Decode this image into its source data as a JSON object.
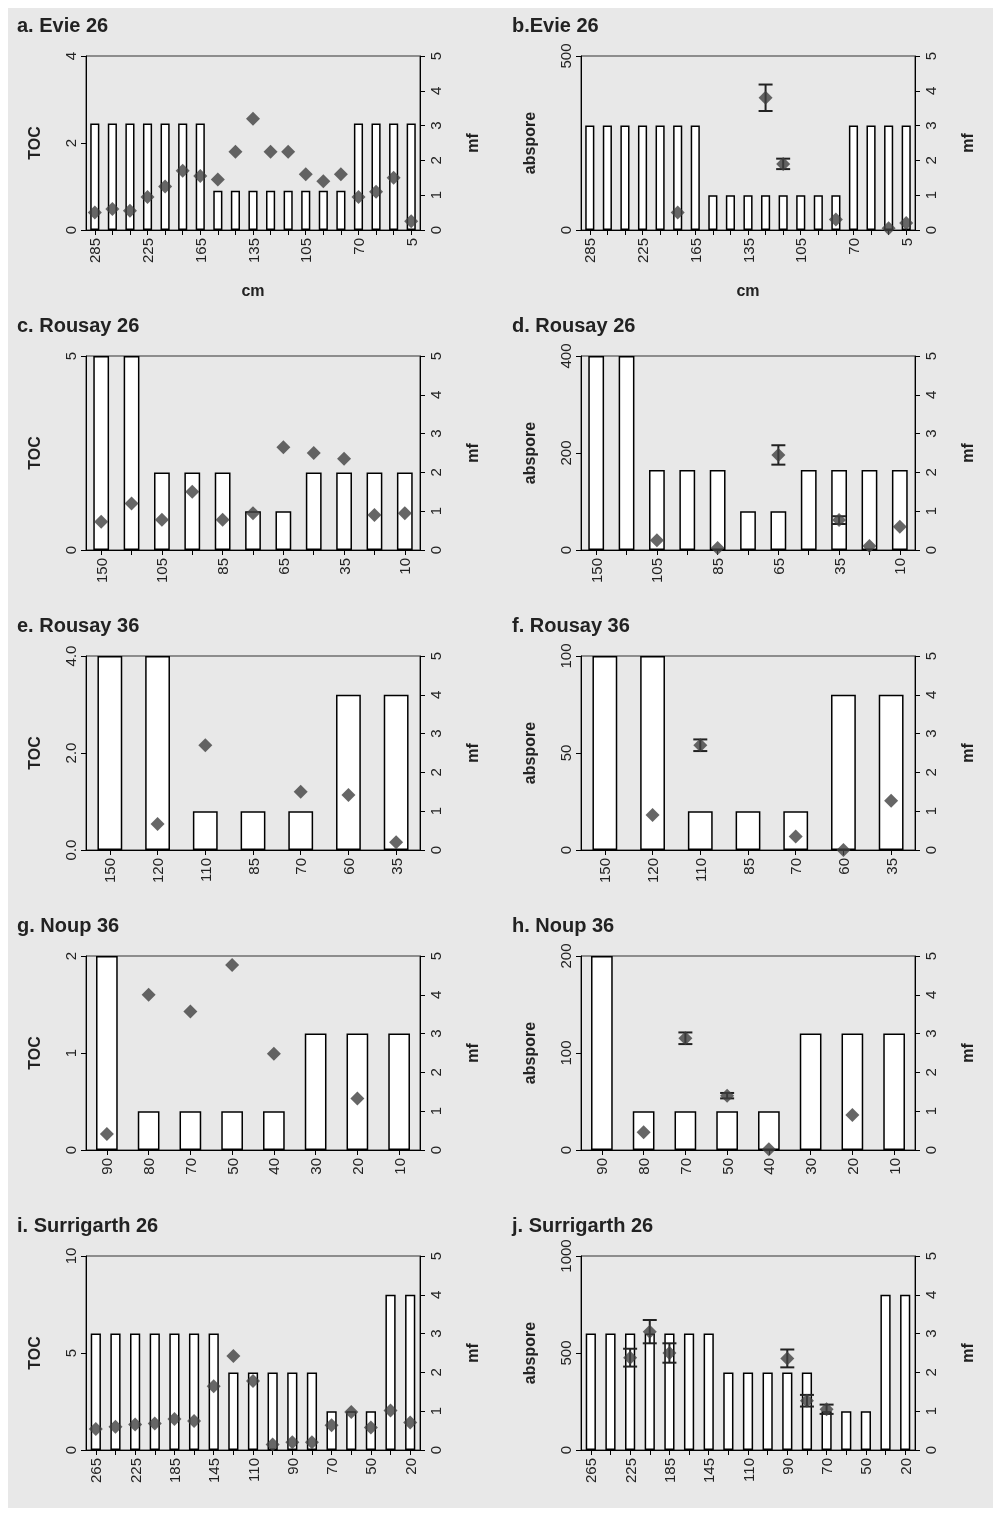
{
  "chart_data": [
    {
      "type": "bar",
      "title": "a. Evie 26",
      "xlabel": "cm",
      "ylabel": "TOC",
      "y2label": "mf",
      "categories": [
        "285",
        null,
        null,
        "225",
        null,
        null,
        "165",
        null,
        null,
        "135",
        null,
        null,
        "105",
        null,
        null,
        "70",
        null,
        null,
        "5"
      ],
      "ylim": [
        0,
        4
      ],
      "yticks": [
        0,
        2,
        4
      ],
      "y2lim": [
        0,
        5
      ],
      "y2ticks": [
        0,
        1,
        2,
        3,
        4,
        5
      ],
      "series": [
        {
          "color": "#ffffff",
          "values": [
            2.45,
            2.45,
            2.45,
            2.45,
            2.45,
            2.45,
            2.45,
            0.9,
            0.9,
            0.9,
            0.9,
            0.9,
            0.9,
            0.9,
            0.9,
            2.45,
            2.45,
            2.45,
            2.45
          ]
        },
        {
          "type": "scatter",
          "axis": "y2",
          "color": "#404040",
          "marker": "diamond",
          "values": [
            0.5,
            0.6,
            0.55,
            0.95,
            1.25,
            1.7,
            1.55,
            1.45,
            2.25,
            3.2,
            2.25,
            2.25,
            1.6,
            1.4,
            1.6,
            0.95,
            1.1,
            1.5,
            0.25
          ]
        }
      ]
    },
    {
      "type": "bar",
      "title": "b.Evie 26",
      "xlabel": "cm",
      "ylabel": "abspore",
      "y2label": "mf",
      "categories": [
        "285",
        null,
        null,
        "225",
        null,
        null,
        "165",
        null,
        null,
        "135",
        null,
        null,
        "105",
        null,
        null,
        "70",
        null,
        null,
        "5"
      ],
      "ylim": [
        0,
        500
      ],
      "yticks": [
        0,
        500
      ],
      "y2lim": [
        0,
        5
      ],
      "y2ticks": [
        0,
        1,
        2,
        3,
        4,
        5
      ],
      "series": [
        {
          "color": "#ffffff",
          "values": [
            300,
            300,
            300,
            300,
            300,
            300,
            300,
            100,
            100,
            100,
            100,
            100,
            100,
            100,
            100,
            300,
            300,
            300,
            300
          ]
        },
        {
          "type": "scatter",
          "axis": "y2",
          "color": "#404040",
          "marker": "diamond",
          "values": [
            null,
            null,
            null,
            null,
            null,
            0.5,
            null,
            null,
            null,
            null,
            3.8,
            1.9,
            null,
            null,
            0.3,
            null,
            null,
            0.05,
            0.2
          ],
          "errors": [
            null,
            null,
            null,
            null,
            null,
            null,
            null,
            null,
            null,
            null,
            0.38,
            0.15,
            null,
            null,
            null,
            null,
            null,
            null,
            null
          ]
        }
      ]
    },
    {
      "type": "bar",
      "title": "c. Rousay 26",
      "ylabel": "TOC",
      "y2label": "mf",
      "categories": [
        "150",
        null,
        "105",
        null,
        "85",
        null,
        "65",
        null,
        "35",
        null,
        "10"
      ],
      "ylim": [
        0,
        5
      ],
      "yticks": [
        0,
        5
      ],
      "y2lim": [
        0,
        5
      ],
      "y2ticks": [
        0,
        1,
        2,
        3,
        4,
        5
      ],
      "series": [
        {
          "color": "#ffffff",
          "values": [
            5,
            5,
            2,
            2,
            2,
            1,
            1,
            2,
            2,
            2,
            2
          ]
        },
        {
          "type": "scatter",
          "axis": "y2",
          "color": "#404040",
          "marker": "diamond",
          "values": [
            0.73,
            1.2,
            0.78,
            1.5,
            0.78,
            0.95,
            2.65,
            2.5,
            2.35,
            0.9,
            0.95
          ]
        }
      ]
    },
    {
      "type": "bar",
      "title": "d. Rousay 26",
      "ylabel": "abspore",
      "y2label": "mf",
      "categories": [
        "150",
        null,
        "105",
        null,
        "85",
        null,
        "65",
        null,
        "35",
        null,
        "10"
      ],
      "ylim": [
        0,
        400
      ],
      "yticks": [
        0,
        200,
        400
      ],
      "y2lim": [
        0,
        5
      ],
      "y2ticks": [
        0,
        1,
        2,
        3,
        4,
        5
      ],
      "series": [
        {
          "color": "#ffffff",
          "values": [
            400,
            400,
            165,
            165,
            165,
            80,
            80,
            165,
            165,
            165,
            165
          ]
        },
        {
          "type": "scatter",
          "axis": "y2",
          "color": "#404040",
          "marker": "diamond",
          "values": [
            null,
            null,
            0.25,
            null,
            0.05,
            null,
            2.45,
            null,
            0.77,
            0.1,
            0.6
          ],
          "errors": [
            null,
            null,
            null,
            null,
            null,
            null,
            0.25,
            null,
            0.1,
            null,
            null
          ]
        }
      ]
    },
    {
      "type": "bar",
      "title": "e. Rousay 36",
      "ylabel": "TOC",
      "y2label": "mf",
      "categories": [
        "150",
        "120",
        "110",
        "85",
        "70",
        "60",
        "35"
      ],
      "ylim": [
        0,
        4
      ],
      "yticks": [
        {
          "value": 0,
          "label": "0.0"
        },
        {
          "value": 2,
          "label": "2.0"
        },
        {
          "value": 4,
          "label": "4.0"
        }
      ],
      "y2lim": [
        0,
        5
      ],
      "y2ticks": [
        0,
        1,
        2,
        3,
        4,
        5
      ],
      "series": [
        {
          "color": "#ffffff",
          "values": [
            4,
            4,
            0.8,
            0.8,
            0.8,
            3.2,
            3.2
          ]
        },
        {
          "type": "scatter",
          "axis": "y2",
          "color": "#404040",
          "marker": "diamond",
          "values": [
            null,
            0.67,
            2.7,
            null,
            1.5,
            1.42,
            0.2
          ]
        }
      ]
    },
    {
      "type": "bar",
      "title": "f. Rousay 36",
      "ylabel": "abspore",
      "y2label": "mf",
      "categories": [
        "150",
        "120",
        "110",
        "85",
        "70",
        "60",
        "35"
      ],
      "ylim": [
        0,
        100
      ],
      "yticks": [
        0,
        50,
        100
      ],
      "y2lim": [
        0,
        5
      ],
      "y2ticks": [
        0,
        1,
        2,
        3,
        4,
        5
      ],
      "series": [
        {
          "color": "#ffffff",
          "values": [
            100,
            100,
            20,
            20,
            20,
            80,
            80
          ]
        },
        {
          "type": "scatter",
          "axis": "y2",
          "color": "#404040",
          "marker": "diamond",
          "values": [
            null,
            0.9,
            2.7,
            null,
            0.35,
            0,
            1.27
          ],
          "errors": [
            null,
            null,
            0.15,
            null,
            null,
            null,
            null
          ]
        }
      ]
    },
    {
      "type": "bar",
      "title": "g. Noup 36",
      "ylabel": "TOC",
      "y2label": "mf",
      "categories": [
        "90",
        "80",
        "70",
        "50",
        "40",
        "30",
        "20",
        "10"
      ],
      "ylim": [
        0,
        2
      ],
      "yticks": [
        0,
        1,
        2
      ],
      "y2lim": [
        0,
        5
      ],
      "y2ticks": [
        0,
        1,
        2,
        3,
        4,
        5
      ],
      "series": [
        {
          "color": "#ffffff",
          "values": [
            2,
            0.4,
            0.4,
            0.4,
            0.4,
            1.2,
            1.2,
            1.2
          ]
        },
        {
          "type": "scatter",
          "axis": "y2",
          "color": "#404040",
          "marker": "diamond",
          "values": [
            0.41,
            4.0,
            3.57,
            4.77,
            2.48,
            null,
            1.33,
            null
          ]
        }
      ]
    },
    {
      "type": "bar",
      "title": "h. Noup 36",
      "ylabel": "abspore",
      "y2label": "mf",
      "categories": [
        "90",
        "80",
        "70",
        "50",
        "40",
        "30",
        "20",
        "10"
      ],
      "ylim": [
        0,
        200
      ],
      "yticks": [
        0,
        100,
        200
      ],
      "y2lim": [
        0,
        5
      ],
      "y2ticks": [
        0,
        1,
        2,
        3,
        4,
        5
      ],
      "series": [
        {
          "color": "#ffffff",
          "values": [
            200,
            40,
            40,
            40,
            40,
            120,
            120,
            120
          ]
        },
        {
          "type": "scatter",
          "axis": "y2",
          "color": "#404040",
          "marker": "diamond",
          "values": [
            null,
            0.46,
            2.88,
            1.4,
            0.02,
            null,
            0.9,
            null
          ],
          "errors": [
            null,
            null,
            0.15,
            0.07,
            null,
            null,
            null,
            null
          ]
        }
      ]
    },
    {
      "type": "bar",
      "title": "i. Surrigarth 26",
      "ylabel": "TOC",
      "y2label": "mf",
      "categories": [
        "265",
        null,
        "225",
        null,
        "185",
        null,
        "145",
        null,
        "110",
        null,
        "90",
        null,
        "70",
        null,
        "50",
        null,
        "20"
      ],
      "ylim": [
        0,
        10
      ],
      "yticks": [
        0,
        5,
        10
      ],
      "y2lim": [
        0,
        5
      ],
      "y2ticks": [
        0,
        1,
        2,
        3,
        4,
        5
      ],
      "series": [
        {
          "color": "#ffffff",
          "values": [
            6,
            6,
            6,
            6,
            6,
            6,
            6,
            4,
            4,
            4,
            4,
            4,
            2,
            2,
            2,
            8,
            8
          ]
        },
        {
          "type": "scatter",
          "axis": "y2",
          "color": "#404040",
          "marker": "diamond",
          "values": [
            0.54,
            0.6,
            0.66,
            0.68,
            0.8,
            0.75,
            1.64,
            2.42,
            1.78,
            0.14,
            0.2,
            0.2,
            0.64,
            0.98,
            0.58,
            1.02,
            0.71
          ]
        }
      ]
    },
    {
      "type": "bar",
      "title": "j. Surrigarth 26",
      "ylabel": "abspore",
      "y2label": "mf",
      "categories": [
        "265",
        null,
        "225",
        null,
        "185",
        null,
        "145",
        null,
        "110",
        null,
        "90",
        null,
        "70",
        null,
        "50",
        null,
        "20"
      ],
      "ylim": [
        0,
        1000
      ],
      "yticks": [
        0,
        500,
        1000
      ],
      "y2lim": [
        0,
        5
      ],
      "y2ticks": [
        0,
        1,
        2,
        3,
        4,
        5
      ],
      "series": [
        {
          "color": "#ffffff",
          "values": [
            600,
            600,
            600,
            600,
            600,
            600,
            600,
            400,
            400,
            400,
            400,
            400,
            200,
            200,
            200,
            800,
            800
          ]
        },
        {
          "type": "scatter",
          "axis": "y2",
          "color": "#404040",
          "marker": "diamond",
          "values": [
            null,
            null,
            2.38,
            3.05,
            2.5,
            null,
            null,
            null,
            null,
            null,
            2.36,
            1.27,
            1.05,
            null,
            null,
            null,
            null
          ],
          "errors": [
            null,
            null,
            0.23,
            0.3,
            0.25,
            null,
            null,
            null,
            null,
            null,
            0.23,
            0.15,
            0.12,
            null,
            null,
            null,
            null
          ]
        }
      ]
    }
  ]
}
